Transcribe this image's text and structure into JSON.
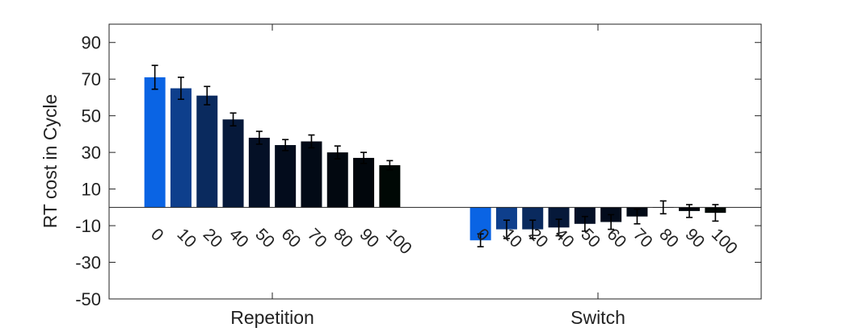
{
  "chart_data": {
    "type": "bar",
    "ylabel": "RT cost in Cycle",
    "xlabel": "",
    "ylim": [
      -50,
      100
    ],
    "yticks": [
      90,
      70,
      50,
      30,
      10,
      -10,
      -30,
      -50
    ],
    "grid": false,
    "groups": [
      {
        "name": "Repetition",
        "categories": [
          "0",
          "10",
          "20",
          "40",
          "50",
          "60",
          "70",
          "80",
          "90",
          "100"
        ],
        "values": [
          71,
          65,
          61,
          48,
          38,
          34,
          36,
          30,
          27,
          23
        ],
        "errors": [
          6.5,
          6,
          5,
          3.5,
          3.5,
          3,
          3.5,
          3.5,
          3,
          2.5
        ],
        "colors": [
          "#0a64e4",
          "#0e3f8c",
          "#0a2a5e",
          "#06193a",
          "#041026",
          "#030c1c",
          "#020a16",
          "#020810",
          "#01060c",
          "#000805"
        ]
      },
      {
        "name": "Switch",
        "categories": [
          "0",
          "10",
          "20",
          "40",
          "50",
          "60",
          "70",
          "80",
          "90",
          "100"
        ],
        "values": [
          -18,
          -12,
          -12,
          -11,
          -9,
          -8,
          -5,
          0,
          -2,
          -3
        ],
        "errors": [
          3.5,
          5,
          5,
          4.5,
          4,
          4,
          4,
          3.5,
          3.5,
          4.5
        ],
        "colors": [
          "#0a64e4",
          "#0e3f8c",
          "#0a2a5e",
          "#06193a",
          "#041026",
          "#030c1c",
          "#020a16",
          "#020810",
          "#01060c",
          "#000805"
        ]
      }
    ]
  }
}
